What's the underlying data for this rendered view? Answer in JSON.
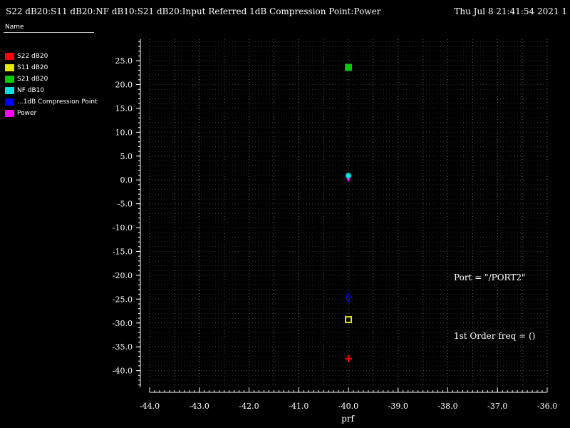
{
  "header": {
    "title": "S22 dB20:S11 dB20:NF dB10:S21 dB20:Input Referred 1dB Compression Point:Power",
    "timestamp": "Thu Jul 8 21:41:54 2021  1"
  },
  "legend": {
    "header": "Name",
    "items": [
      {
        "label": "S22 dB20",
        "color": "#ff0000"
      },
      {
        "label": "S11 dB20",
        "color": "#e6e600"
      },
      {
        "label": "S21 dB20",
        "color": "#00cc00"
      },
      {
        "label": "NF dB10",
        "color": "#00e0e0"
      },
      {
        "label": "...1dB Compression Point",
        "color": "#0000ff"
      },
      {
        "label": "Power",
        "color": "#ff00ff"
      }
    ]
  },
  "annotations": [
    "Port = \"/PORT2\"",
    "1st Order freq = ()"
  ],
  "chart_data": {
    "type": "scatter",
    "xlabel": "prf",
    "ylabel": "",
    "xlim": [
      -44.0,
      -36.0
    ],
    "ylim": [
      -43.5,
      29.5
    ],
    "grid": true,
    "legend_position": "left",
    "x_ticks": [
      "-44.0",
      "-43.0",
      "-42.0",
      "-41.0",
      "-40.0",
      "-39.0",
      "-38.0",
      "-37.0",
      "-36.0"
    ],
    "y_ticks": [
      "25.0",
      "20.0",
      "15.0",
      "10.0",
      "5.0",
      "0.0",
      "-5.0",
      "-10.0",
      "-15.0",
      "-20.0",
      "-25.0",
      "-30.0",
      "-35.0",
      "-40.0"
    ],
    "series": [
      {
        "name": "S22 dB20",
        "color": "#ff0000",
        "marker": "plus",
        "x": [
          -40.0
        ],
        "y": [
          -37.5
        ]
      },
      {
        "name": "S11 dB20",
        "color": "#e6e600",
        "marker": "hollow-square",
        "x": [
          -40.0
        ],
        "y": [
          -29.3
        ]
      },
      {
        "name": "S21 dB20",
        "color": "#00cc00",
        "marker": "square",
        "x": [
          -40.0
        ],
        "y": [
          23.6
        ]
      },
      {
        "name": "NF dB10",
        "color": "#00e0e0",
        "marker": "circle",
        "x": [
          -40.0
        ],
        "y": [
          0.9
        ]
      },
      {
        "name": "...1dB Compression Point",
        "color": "#0000ff",
        "marker": "arrow-up",
        "x": [
          -40.0
        ],
        "y": [
          -24.7
        ]
      },
      {
        "name": "Power",
        "color": "#ff00ff",
        "marker": "arrow-down",
        "x": [
          -40.0
        ],
        "y": [
          0.2
        ]
      }
    ]
  }
}
